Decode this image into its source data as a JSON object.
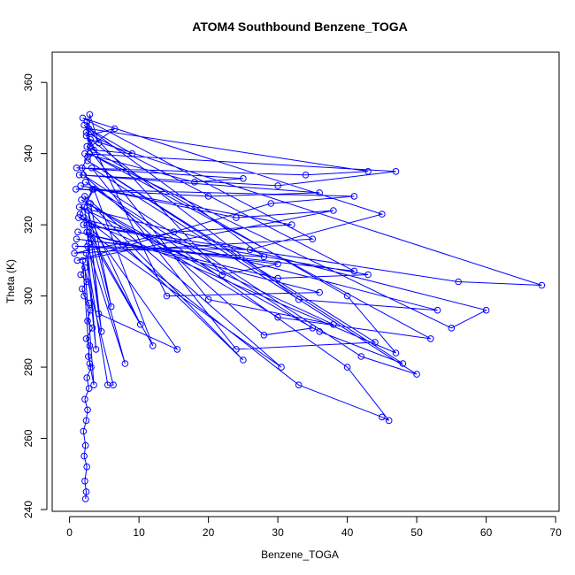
{
  "chart_data": {
    "type": "line",
    "title": "ATOM4 Southbound Benzene_TOGA",
    "xlabel": "Benzene_TOGA",
    "ylabel": "Theta (K)",
    "xlim": [
      -2.5,
      70.5
    ],
    "ylim": [
      239.5,
      368.5
    ],
    "xticks": [
      0,
      10,
      20,
      30,
      40,
      50,
      60,
      70
    ],
    "yticks": [
      240,
      260,
      280,
      300,
      320,
      340,
      360
    ],
    "grid": false,
    "marker": "open-circle",
    "line_color": "#0000ff",
    "series": [
      {
        "name": "",
        "x": [
          2.3,
          2.4,
          2.2,
          2.5,
          2.1,
          2.3,
          2.0,
          2.4,
          2.6,
          2.2,
          2.8,
          2.5,
          3.1,
          2.7,
          2.9,
          2.4,
          3.3,
          2.6,
          3.0,
          2.8,
          2.1,
          1.8,
          2.5,
          1.6,
          2.2,
          3.5,
          2.9,
          1.9,
          6.3,
          5.5,
          2.4,
          3.8,
          2.6,
          8.0,
          3.1,
          4.6,
          2.5,
          10.2,
          3.4,
          2.1,
          15.5,
          4.2,
          2.7,
          25.0,
          3.0,
          6.0,
          2.2,
          30.5,
          2.8,
          12.0,
          3.5,
          1.5,
          33.0,
          45.0,
          46.0,
          40.0,
          2.3,
          35.0,
          28.0,
          2.0,
          42.0,
          50.0,
          3.2,
          24.0,
          44.0,
          2.6,
          48.0,
          36.0,
          1.7,
          30.0,
          52.0,
          2.9,
          55.0,
          60.0,
          1.4,
          38.0,
          20.0,
          2.5,
          40.0,
          47.0,
          1.3,
          53.0,
          33.0,
          3.0,
          68.0,
          56.0,
          2.0,
          43.0,
          30.0,
          1.2,
          36.0,
          14.0,
          2.4,
          41.0,
          1.0,
          30.0,
          22.0,
          2.1,
          28.0,
          0.8,
          26.0,
          45.0,
          1.9,
          35.0,
          0.7,
          15.0,
          32.0,
          1.6,
          24.0,
          38.0,
          1.1,
          29.0,
          41.0,
          0.9,
          20.0,
          36.0,
          1.4,
          30.0,
          47.0,
          2.2,
          18.0,
          25.0,
          1.0,
          34.0,
          43.0,
          2.8,
          9.0,
          3.5,
          2.4,
          6.5,
          3.0,
          2.5,
          4.2,
          2.9,
          2.6,
          1.8,
          3.3,
          2.1,
          2.5,
          2.8
        ],
        "y": [
          243,
          245,
          248,
          252,
          255,
          258,
          262,
          265,
          268,
          271,
          274,
          277,
          280,
          283,
          286,
          288,
          291,
          293,
          296,
          298,
          300,
          302,
          304,
          306,
          308,
          275,
          281,
          310,
          275,
          275,
          312,
          285,
          314,
          281,
          316,
          290,
          318,
          292,
          320,
          322,
          285,
          295,
          324,
          282,
          326,
          297,
          328,
          280,
          318,
          286,
          330,
          323,
          275,
          266,
          265,
          280,
          332,
          291,
          289,
          334,
          283,
          278,
          336,
          285,
          287,
          338,
          281,
          290,
          327,
          294,
          288,
          340,
          291,
          296,
          325,
          292,
          299,
          342,
          300,
          284,
          322,
          296,
          299,
          344,
          303,
          304,
          320,
          306,
          305,
          318,
          301,
          300,
          346,
          307,
          316,
          309,
          306,
          348,
          311,
          314,
          313,
          323,
          350,
          316,
          312,
          318,
          320,
          331,
          322,
          324,
          310,
          326,
          328,
          330,
          328,
          329,
          334,
          331,
          335,
          340,
          332,
          333,
          336,
          334,
          335,
          347,
          340,
          341,
          345,
          347,
          342,
          349,
          343,
          351,
          339,
          336,
          330,
          325,
          320,
          315
        ]
      }
    ]
  }
}
